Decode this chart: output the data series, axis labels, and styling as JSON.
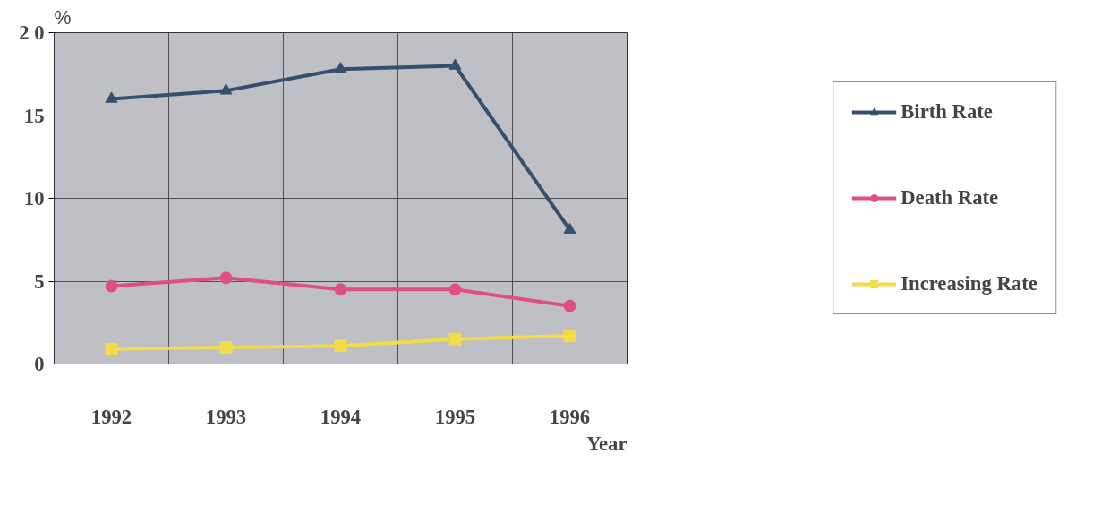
{
  "chart_data": {
    "type": "line",
    "xlabel": "Year",
    "ylabel": "%",
    "categories": [
      "1992",
      "1993",
      "1994",
      "1995",
      "1996"
    ],
    "series": [
      {
        "name": "Birth Rate",
        "color": "#34506e",
        "marker": "triangle",
        "values": [
          16.0,
          16.5,
          17.8,
          18.0,
          8.1
        ]
      },
      {
        "name": "Death Rate",
        "color": "#e0507e",
        "marker": "circle",
        "values": [
          4.7,
          5.2,
          4.5,
          4.5,
          3.5
        ]
      },
      {
        "name": "Increasing Rate",
        "color": "#f2dc4a",
        "marker": "square",
        "values": [
          0.9,
          1.0,
          1.1,
          1.5,
          1.7
        ]
      }
    ],
    "ylim": [
      0,
      20
    ],
    "yticks": [
      0,
      5,
      10,
      15,
      {
        "value": 20,
        "label": "2 0"
      }
    ],
    "grid": true,
    "legend": "right"
  }
}
